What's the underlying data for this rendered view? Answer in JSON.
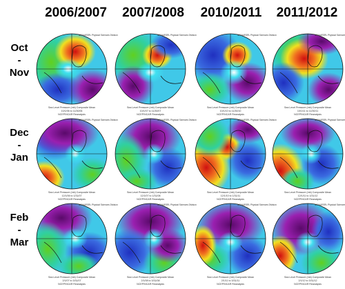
{
  "columns": [
    "2006/2007",
    "2007/2008",
    "2010/2011",
    "2011/2012"
  ],
  "rows": [
    [
      "Oct",
      "-",
      "Nov"
    ],
    [
      "Dec",
      "-",
      "Jan"
    ],
    [
      "Feb",
      "-",
      "Mar"
    ]
  ],
  "caption": {
    "source": "NOAA/ESRL Physical Sciences Division",
    "title": "Sea Level Pressure (mb) Composite Mean",
    "reanalysis": "NCEP/NCAR Reanalysis"
  },
  "panels": [
    [
      "10/1/06 to 11/30/06",
      "10/1/07 to 11/30/07",
      "10/1/10 to 11/30/10",
      "10/1/11 to 11/30/11"
    ],
    [
      "12/1/06 to 1/31/07",
      "12/1/07 to 1/31/08",
      "12/1/10 to 1/31/11",
      "12/1/11 to 1/31/12"
    ],
    [
      "2/1/07 to 3/31/07",
      "2/1/08 to 3/31/08",
      "2/1/11 to 3/31/11",
      "2/1/12 to 3/31/12"
    ]
  ]
}
